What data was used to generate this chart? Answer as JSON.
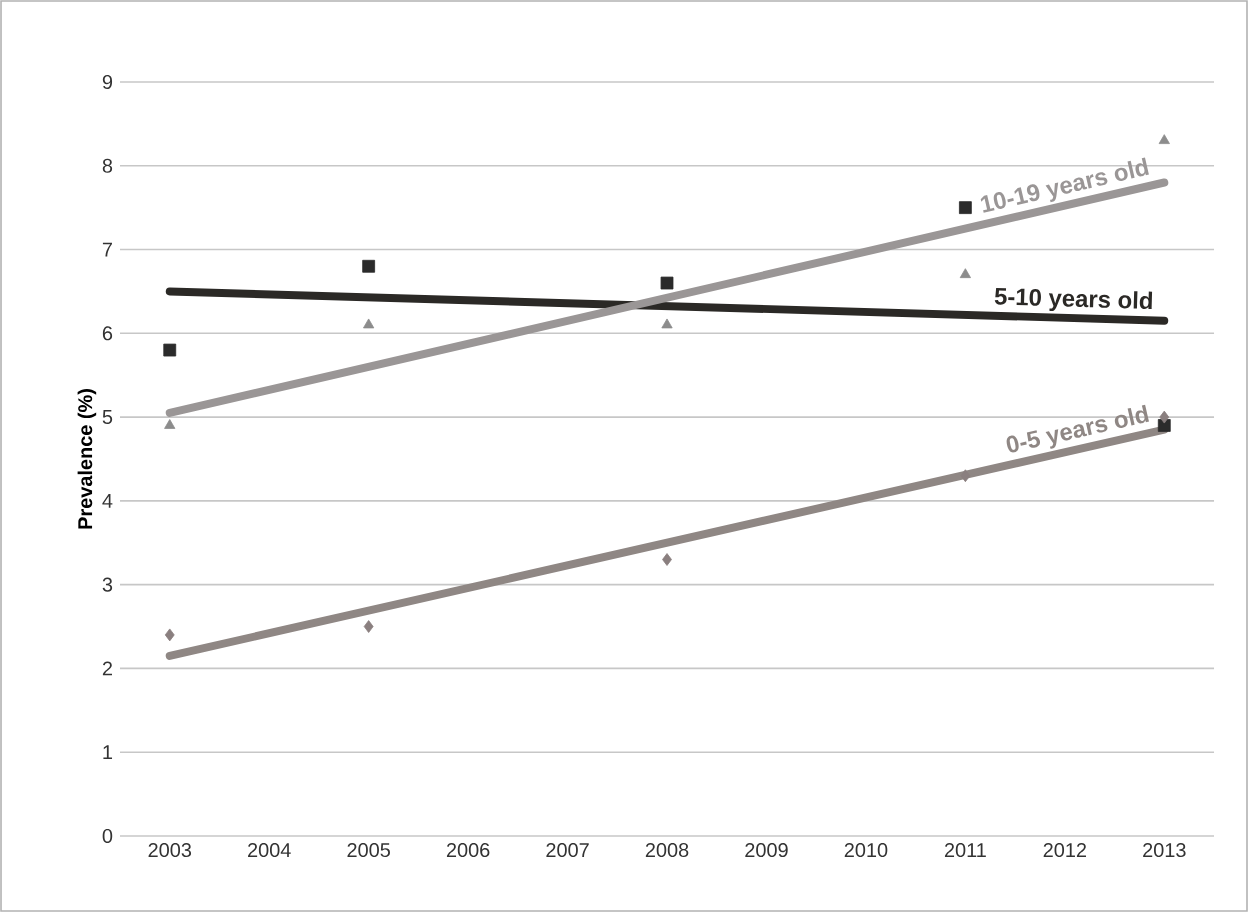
{
  "chart_data": {
    "type": "scatter",
    "ylabel": "Prevalence (%)",
    "xlim": [
      2002.5,
      2013.5
    ],
    "xticks": [
      2003,
      2004,
      2005,
      2006,
      2007,
      2008,
      2009,
      2010,
      2011,
      2012,
      2013
    ],
    "ylim": [
      0,
      9
    ],
    "yticks": [
      0,
      1,
      2,
      3,
      4,
      5,
      6,
      7,
      8,
      9
    ],
    "grid": "y",
    "series": [
      {
        "marker": "square",
        "color": "#2b2b2b",
        "x": [
          2003,
          2005,
          2008,
          2011,
          2013
        ],
        "values": [
          5.8,
          6.8,
          6.6,
          7.5,
          4.9
        ]
      },
      {
        "marker": "triangle",
        "color": "#8c8c8c",
        "x": [
          2003,
          2005,
          2008,
          2011,
          2013
        ],
        "values": [
          4.9,
          6.1,
          6.1,
          6.7,
          8.3
        ]
      },
      {
        "marker": "diamond",
        "color": "#8a7f7f",
        "x": [
          2003,
          2005,
          2008,
          2011,
          2013
        ],
        "values": [
          2.4,
          2.5,
          3.3,
          4.3,
          5.0
        ]
      },
      {
        "type": "line",
        "name": "5-10 years old",
        "color": "#2b2926",
        "x": [
          2003,
          2013
        ],
        "values": [
          6.5,
          6.15
        ]
      },
      {
        "type": "line",
        "name": "10-19 years old",
        "color": "#9a9696",
        "x": [
          2003,
          2013
        ],
        "values": [
          5.05,
          7.8
        ]
      },
      {
        "type": "line",
        "name": "0-5 years old",
        "color": "#8f8784",
        "x": [
          2003,
          2013
        ],
        "values": [
          2.15,
          4.85
        ]
      }
    ]
  }
}
